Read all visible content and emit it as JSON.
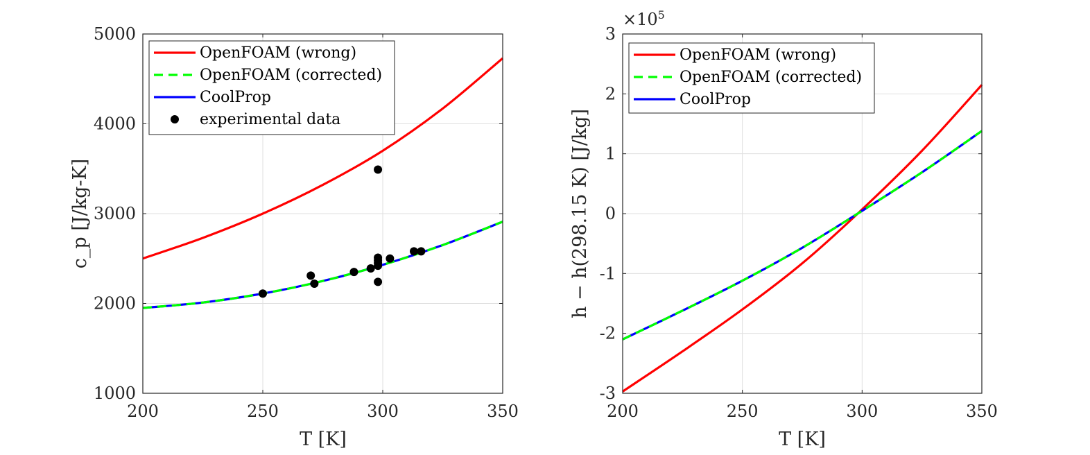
{
  "chart_data": [
    {
      "type": "line",
      "title": "",
      "xlabel": "T [K]",
      "ylabel": "c_p [J/kg-K]",
      "xlim": [
        200,
        350
      ],
      "ylim": [
        1000,
        5000
      ],
      "xticks": [
        200,
        250,
        300,
        350
      ],
      "yticks": [
        1000,
        2000,
        3000,
        4000,
        5000
      ],
      "xtick_labels": [
        "200",
        "250",
        "300",
        "350"
      ],
      "ytick_labels": [
        "1000",
        "2000",
        "3000",
        "4000",
        "5000"
      ],
      "grid": true,
      "legend_position": "top-left",
      "series": [
        {
          "name": "OpenFOAM (wrong)",
          "style": "solid",
          "color": "#ff0000",
          "x": [
            200,
            225,
            250,
            275,
            300,
            325,
            350
          ],
          "y": [
            2500,
            2730,
            3000,
            3320,
            3700,
            4170,
            4730
          ]
        },
        {
          "name": "OpenFOAM (corrected)",
          "style": "dashed",
          "color": "#00ff00",
          "x": [
            200,
            225,
            250,
            275,
            300,
            325,
            350
          ],
          "y": [
            1950,
            2010,
            2110,
            2250,
            2430,
            2650,
            2910
          ]
        },
        {
          "name": "CoolProp",
          "style": "solid",
          "color": "#0000ff",
          "x": [
            200,
            225,
            250,
            275,
            300,
            325,
            350
          ],
          "y": [
            1950,
            2010,
            2110,
            2250,
            2430,
            2650,
            2910
          ]
        },
        {
          "name": "experimental data",
          "style": "marker",
          "color": "#000000",
          "x": [
            250,
            270,
            271.5,
            288,
            295,
            298,
            298,
            298,
            298,
            298,
            298,
            303,
            313,
            316
          ],
          "y": [
            2110,
            2310,
            2220,
            2350,
            2390,
            2240,
            2420,
            2450,
            2480,
            2510,
            3490,
            2500,
            2580,
            2580
          ]
        }
      ]
    },
    {
      "type": "line",
      "title": "",
      "xlabel": "T [K]",
      "ylabel": "h − h(298.15 K) [J/kg]",
      "exponent_label": "×10^5",
      "exponent_base": "×10",
      "exponent_power": "5",
      "xlim": [
        200,
        350
      ],
      "ylim": [
        -3,
        3
      ],
      "y_units": "×10^5 J/kg",
      "xticks": [
        200,
        250,
        300,
        350
      ],
      "yticks": [
        -3,
        -2,
        -1,
        0,
        1,
        2,
        3
      ],
      "xtick_labels": [
        "200",
        "250",
        "300",
        "350"
      ],
      "ytick_labels": [
        "-3",
        "-2",
        "-1",
        "0",
        "1",
        "2",
        "3"
      ],
      "grid": true,
      "legend_position": "top-left",
      "series": [
        {
          "name": "OpenFOAM (wrong)",
          "style": "solid",
          "color": "#ff0000",
          "x": [
            200,
            225,
            250,
            275,
            298.15,
            325,
            350
          ],
          "y": [
            -2.97,
            -2.3,
            -1.6,
            -0.83,
            0,
            1.05,
            2.15
          ]
        },
        {
          "name": "OpenFOAM (corrected)",
          "style": "dashed",
          "color": "#00ff00",
          "x": [
            200,
            225,
            250,
            275,
            298.15,
            325,
            350
          ],
          "y": [
            -2.1,
            -1.62,
            -1.12,
            -0.57,
            0,
            0.69,
            1.38
          ]
        },
        {
          "name": "CoolProp",
          "style": "solid",
          "color": "#0000ff",
          "x": [
            200,
            225,
            250,
            275,
            298.15,
            325,
            350
          ],
          "y": [
            -2.1,
            -1.62,
            -1.12,
            -0.57,
            0,
            0.69,
            1.38
          ]
        }
      ]
    }
  ]
}
